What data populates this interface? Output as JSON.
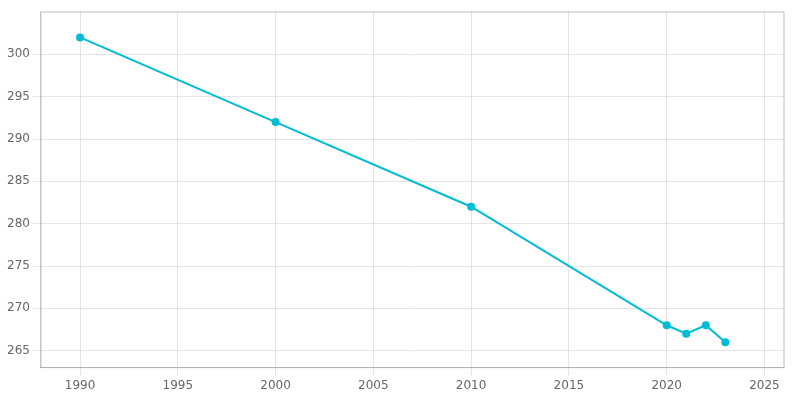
{
  "chart_data": {
    "type": "line",
    "x": [
      1990,
      2000,
      2010,
      2020,
      2021,
      2022,
      2023
    ],
    "values": [
      302,
      292,
      282,
      268,
      267,
      268,
      266
    ],
    "color": "#00bcd4",
    "marker": "circle",
    "xlim": [
      1988,
      2026
    ],
    "xticks": [
      1990,
      1995,
      2000,
      2005,
      2010,
      2015,
      2020,
      2025
    ],
    "ylim": [
      263,
      305
    ],
    "yticks": [
      265,
      270,
      275,
      280,
      285,
      290,
      295,
      300
    ],
    "grid": true
  }
}
